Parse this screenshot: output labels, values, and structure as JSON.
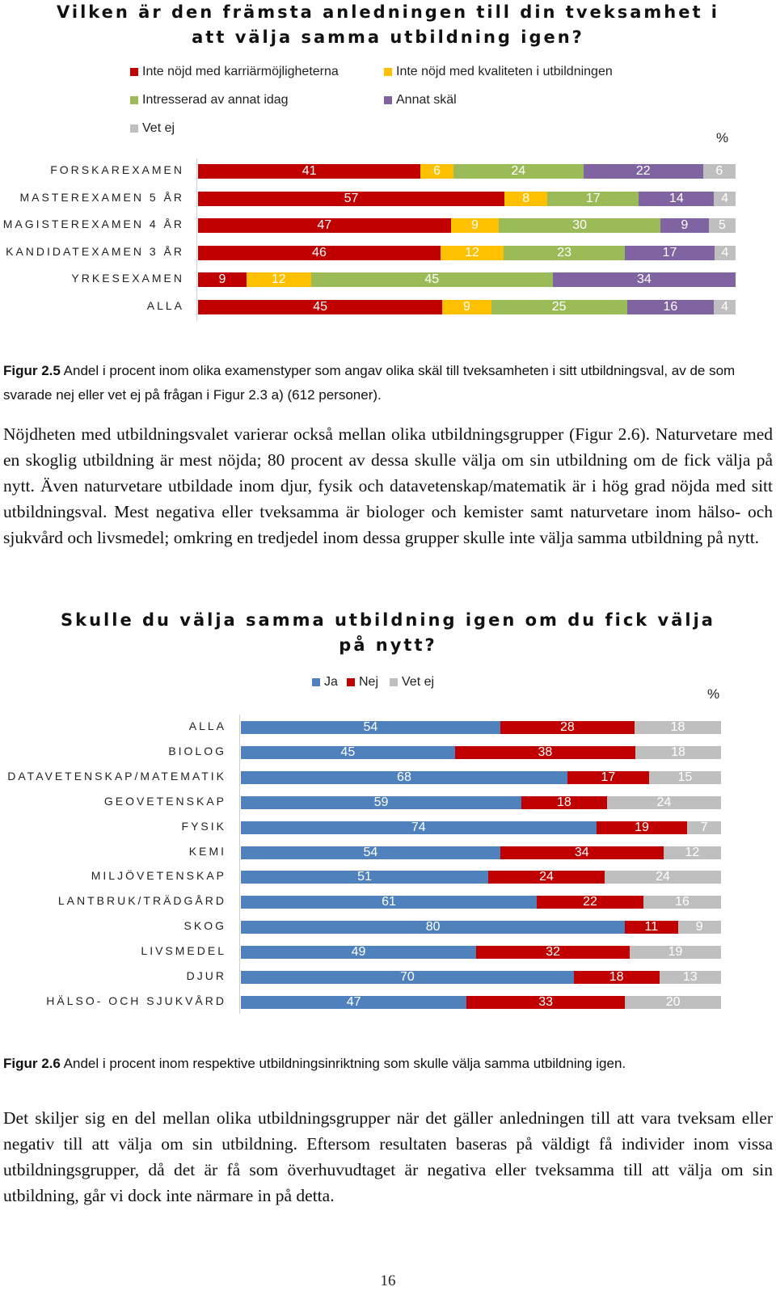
{
  "chart1": {
    "title_line1": "Vilken är den främsta anledningen till din tveksamhet i",
    "title_line2": "att välja samma utbildning igen?",
    "unit": "%",
    "legend": [
      {
        "label": "Inte nöjd med karriärmöjligheterna",
        "color": "#c00000"
      },
      {
        "label": "Inte nöjd med kvaliteten i utbildningen",
        "color": "#ffc000"
      },
      {
        "label": "Intresserad av annat idag",
        "color": "#9bbb59"
      },
      {
        "label": "Annat skäl",
        "color": "#8064a2"
      },
      {
        "label": "Vet ej",
        "color": "#bfbfbf"
      }
    ]
  },
  "caption1": {
    "prefix": "Figur 2.5",
    "text": " Andel i procent inom olika examenstyper som angav olika skäl till tveksamheten i sitt utbildningsval, av de som svarade nej eller vet ej på frågan i Figur 2.3 a) (612 personer)."
  },
  "paragraph1": "Nöjdheten med utbildningsvalet varierar också mellan olika utbildningsgrupper (Figur 2.6). Naturvetare med en skoglig utbildning är mest nöjda; 80 procent av dessa skulle välja om sin utbildning om de fick välja på nytt. Även naturvetare utbildade inom djur, fysik och datavetenskap/matematik är i hög grad nöjda med sitt utbildningsval. Mest negativa eller tveksamma är biologer och kemister samt naturvetare inom hälso- och sjukvård och livsmedel; omkring en tredjedel inom dessa grupper skulle inte välja samma utbildning på nytt.",
  "chart2": {
    "title_line1": "Skulle du välja samma utbildning igen om du fick välja",
    "title_line2": "på nytt?",
    "unit": "%",
    "legend": [
      {
        "label": "Ja",
        "color": "#4f81bd"
      },
      {
        "label": "Nej",
        "color": "#c00000"
      },
      {
        "label": "Vet ej",
        "color": "#bfbfbf"
      }
    ]
  },
  "caption2": {
    "prefix": "Figur 2.6",
    "text": " Andel i procent inom respektive utbildningsinriktning som skulle välja samma utbildning igen."
  },
  "paragraph2": "Det skiljer sig en del mellan olika utbildningsgrupper när det gäller anledningen till att vara tveksam eller negativ till att välja om sin utbildning. Eftersom resultaten baseras på väldigt få individer inom vissa utbildningsgrupper, då det är få som överhuvudtaget är negativa eller tveksamma till att välja om sin utbildning, går vi dock inte närmare in på detta.",
  "page_number": "16",
  "chart_data": [
    {
      "type": "bar",
      "stacked": true,
      "orientation": "horizontal",
      "title": "Vilken är den främsta anledningen till din tveksamhet i att välja samma utbildning igen?",
      "unit": "%",
      "categories": [
        "FORSKAREXAMEN",
        "MASTEREXAMEN 5 ÅR",
        "MAGISTEREXAMEN 4 ÅR",
        "KANDIDATEXAMEN 3 ÅR",
        "YRKESEXAMEN",
        "ALLA"
      ],
      "series": [
        {
          "name": "Inte nöjd med karriärmöjligheterna",
          "color": "#c00000",
          "values": [
            41,
            57,
            47,
            46,
            9,
            45
          ]
        },
        {
          "name": "Inte nöjd med kvaliteten i utbildningen",
          "color": "#ffc000",
          "values": [
            6,
            8,
            9,
            12,
            12,
            9
          ]
        },
        {
          "name": "Intresserad av annat idag",
          "color": "#9bbb59",
          "values": [
            24,
            17,
            30,
            23,
            45,
            25
          ]
        },
        {
          "name": "Annat skäl",
          "color": "#8064a2",
          "values": [
            22,
            14,
            9,
            17,
            34,
            16
          ]
        },
        {
          "name": "Vet ej",
          "color": "#bfbfbf",
          "values": [
            6,
            4,
            5,
            4,
            0,
            4
          ]
        }
      ],
      "legend_position": "top"
    },
    {
      "type": "bar",
      "stacked": true,
      "orientation": "horizontal",
      "title": "Skulle du välja samma utbildning igen om du fick välja på nytt?",
      "unit": "%",
      "categories": [
        "ALLA",
        "BIOLOG",
        "DATAVETENSKAP/MATEMATIK",
        "GEOVETENSKAP",
        "FYSIK",
        "KEMI",
        "MILJÖVETENSKAP",
        "LANTBRUK/TRÄDGÅRD",
        "SKOG",
        "LIVSMEDEL",
        "DJUR",
        "HÄLSO- OCH SJUKVÅRD"
      ],
      "series": [
        {
          "name": "Ja",
          "color": "#4f81bd",
          "values": [
            54,
            45,
            68,
            59,
            74,
            54,
            51,
            61,
            80,
            49,
            70,
            47
          ]
        },
        {
          "name": "Nej",
          "color": "#c00000",
          "values": [
            28,
            38,
            17,
            18,
            19,
            34,
            24,
            22,
            11,
            32,
            18,
            33
          ]
        },
        {
          "name": "Vet ej",
          "color": "#bfbfbf",
          "values": [
            18,
            18,
            15,
            24,
            7,
            12,
            24,
            16,
            9,
            19,
            13,
            20
          ]
        }
      ],
      "legend_position": "top"
    }
  ]
}
